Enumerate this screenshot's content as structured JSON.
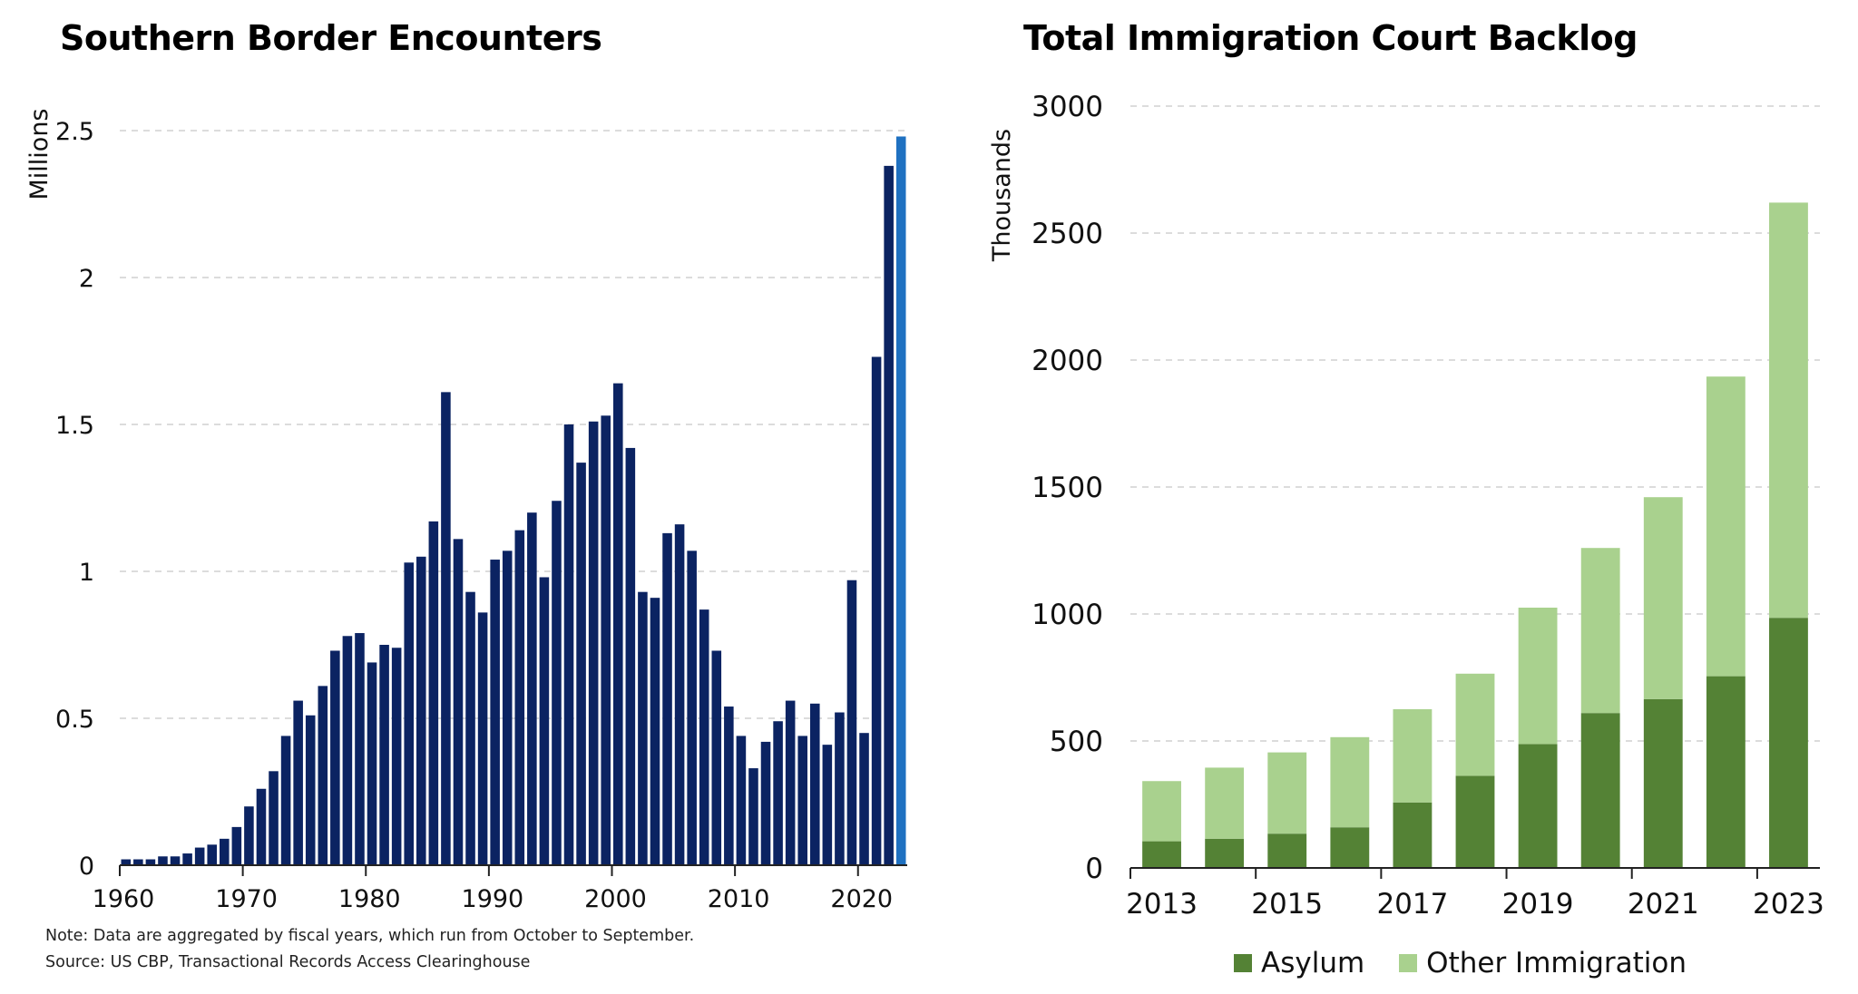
{
  "chart_data": [
    {
      "type": "bar",
      "title": "Southern Border Encounters",
      "ylabel": "Millions",
      "xlabel": "",
      "ylim": [
        0,
        2.5
      ],
      "yticks": [
        "0",
        "0.5",
        "1",
        "1.5",
        "2",
        "2.5"
      ],
      "xticks": [
        "1960",
        "1970",
        "1980",
        "1990",
        "2000",
        "2010",
        "2020"
      ],
      "grid": "horizontal dashed",
      "colors": {
        "bar": "#0b2362",
        "highlight": "#1f71c1"
      },
      "highlight_year": 2023,
      "x": [
        1960,
        1961,
        1962,
        1963,
        1964,
        1965,
        1966,
        1967,
        1968,
        1969,
        1970,
        1971,
        1972,
        1973,
        1974,
        1975,
        1976,
        1977,
        1978,
        1979,
        1980,
        1981,
        1982,
        1983,
        1984,
        1985,
        1986,
        1987,
        1988,
        1989,
        1990,
        1991,
        1992,
        1993,
        1994,
        1995,
        1996,
        1997,
        1998,
        1999,
        2000,
        2001,
        2002,
        2003,
        2004,
        2005,
        2006,
        2007,
        2008,
        2009,
        2010,
        2011,
        2012,
        2013,
        2014,
        2015,
        2016,
        2017,
        2018,
        2019,
        2020,
        2021,
        2022,
        2023
      ],
      "values": [
        0.02,
        0.02,
        0.02,
        0.03,
        0.03,
        0.04,
        0.06,
        0.07,
        0.09,
        0.13,
        0.2,
        0.26,
        0.32,
        0.44,
        0.56,
        0.51,
        0.61,
        0.73,
        0.78,
        0.79,
        0.69,
        0.75,
        0.74,
        1.03,
        1.05,
        1.17,
        1.61,
        1.11,
        0.93,
        0.86,
        1.04,
        1.07,
        1.14,
        1.2,
        0.98,
        1.24,
        1.5,
        1.37,
        1.51,
        1.53,
        1.64,
        1.42,
        0.93,
        0.91,
        1.13,
        1.16,
        1.07,
        0.87,
        0.73,
        0.54,
        0.44,
        0.33,
        0.42,
        0.49,
        0.56,
        0.44,
        0.55,
        0.41,
        0.52,
        0.97,
        0.45,
        1.73,
        2.38,
        2.48
      ]
    },
    {
      "type": "bar",
      "stacked": true,
      "title": "Total Immigration Court Backlog",
      "ylabel": "Thousands",
      "xlabel": "",
      "ylim": [
        0,
        3000
      ],
      "yticks": [
        "0",
        "500",
        "1000",
        "1500",
        "2000",
        "2500",
        "3000"
      ],
      "xticks": [
        "2013",
        "2015",
        "2017",
        "2019",
        "2021",
        "2023"
      ],
      "grid": "horizontal dashed",
      "legend": "bottom",
      "categories": [
        2013,
        2014,
        2015,
        2016,
        2017,
        2018,
        2019,
        2020,
        2021,
        2022,
        2023
      ],
      "series": [
        {
          "name": "Asylum",
          "color": "#548235",
          "values": [
            105,
            115,
            135,
            160,
            258,
            363,
            488,
            610,
            665,
            755,
            985
          ]
        },
        {
          "name": "Other Immigration",
          "color": "#a9d18e",
          "values": [
            237,
            280,
            320,
            355,
            367,
            402,
            537,
            650,
            795,
            1180,
            1635
          ]
        }
      ]
    }
  ],
  "notes": {
    "note": "Note: Data are aggregated by fiscal years, which run from October to September.",
    "source": "Source: US CBP, Transactional Records Access Clearinghouse"
  }
}
